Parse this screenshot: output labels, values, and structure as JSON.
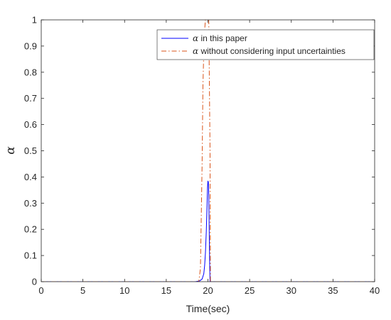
{
  "chart_data": {
    "type": "line",
    "title": "",
    "xlabel": "Time(sec)",
    "ylabel": "α",
    "xlim": [
      0,
      40
    ],
    "ylim": [
      0,
      1
    ],
    "xticks": [
      0,
      5,
      10,
      15,
      20,
      25,
      30,
      35,
      40
    ],
    "yticks": [
      0,
      0.1,
      0.2,
      0.3,
      0.4,
      0.5,
      0.6,
      0.7,
      0.8,
      0.9,
      1
    ],
    "grid": false,
    "legend_position": "top-right",
    "series": [
      {
        "name": "in this paper",
        "name_prefix": "α",
        "color": "#0000ff",
        "style": "solid",
        "x": [
          0,
          15,
          18.5,
          19.0,
          19.3,
          19.5,
          19.6,
          19.7,
          19.8,
          19.9,
          19.95,
          20.0,
          20.05,
          20.1,
          20.15,
          20.2,
          20.25,
          40
        ],
        "y": [
          0,
          0,
          0,
          0.003,
          0.01,
          0.03,
          0.06,
          0.11,
          0.19,
          0.3,
          0.36,
          0.385,
          0.38,
          0.33,
          0.2,
          0.08,
          0,
          0
        ]
      },
      {
        "name": "without considering input uncertainties",
        "name_prefix": "α",
        "color": "#d95319",
        "style": "dashdot",
        "x": [
          0,
          18.9,
          19.1,
          19.3,
          19.4,
          19.5,
          19.6,
          19.7,
          20.1,
          20.25,
          20.3,
          40
        ],
        "y": [
          0,
          0,
          0.05,
          0.45,
          0.75,
          0.88,
          0.96,
          1.0,
          1.0,
          0.5,
          0,
          0
        ]
      }
    ]
  }
}
